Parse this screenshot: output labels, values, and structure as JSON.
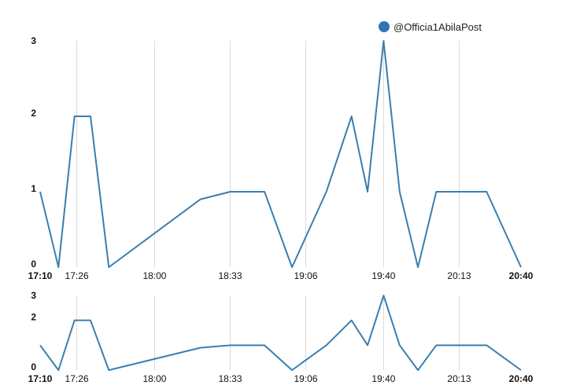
{
  "chart_data": [
    {
      "type": "line",
      "title": "",
      "xlabel": "",
      "ylabel": "",
      "x": [
        "17:10",
        "17:18",
        "17:25",
        "17:32",
        "17:40",
        "18:00",
        "18:20",
        "18:33",
        "18:48",
        "19:00",
        "19:15",
        "19:26",
        "19:33",
        "19:40",
        "19:47",
        "19:55",
        "20:03",
        "20:12",
        "20:25",
        "20:40"
      ],
      "series": [
        {
          "name": "@Officia1AbilaPost",
          "color": "#3a7fb0",
          "values": [
            1,
            0,
            2,
            2,
            0,
            0.45,
            0.9,
            1,
            1,
            0,
            1,
            2,
            1,
            3,
            1,
            0,
            1,
            1,
            1,
            0
          ]
        }
      ],
      "x_ticks": [
        "17:10",
        "17:26",
        "18:00",
        "18:33",
        "19:06",
        "19:40",
        "20:13",
        "20:40"
      ],
      "x_ticks_bold": [
        "17:10",
        "20:40"
      ],
      "y_ticks": [
        "0",
        "1",
        "2",
        "3"
      ],
      "ylim": [
        0,
        3
      ],
      "grid": "vertical",
      "legend_position": "top-right"
    },
    {
      "type": "line",
      "title": "",
      "xlabel": "",
      "ylabel": "",
      "role": "overview",
      "x": [
        "17:10",
        "17:18",
        "17:25",
        "17:32",
        "17:40",
        "18:00",
        "18:20",
        "18:33",
        "18:48",
        "19:00",
        "19:15",
        "19:26",
        "19:33",
        "19:40",
        "19:47",
        "19:55",
        "20:03",
        "20:12",
        "20:25",
        "20:40"
      ],
      "series": [
        {
          "color": "#3a7fb0",
          "values": [
            1,
            0,
            2,
            2,
            0,
            0.45,
            0.9,
            1,
            1,
            0,
            1,
            2,
            1,
            3,
            1,
            0,
            1,
            1,
            1,
            0
          ]
        }
      ],
      "x_ticks": [
        "17:10",
        "17:26",
        "18:00",
        "18:33",
        "19:06",
        "19:40",
        "20:13",
        "20:40"
      ],
      "x_ticks_bold": [
        "17:10",
        "20:40"
      ],
      "y_ticks": [
        "0",
        "2",
        "3"
      ],
      "ylim": [
        0,
        3
      ],
      "grid": "vertical"
    }
  ],
  "legend": {
    "label": "@Officia1AbilaPost",
    "color": "#2e75b6"
  }
}
